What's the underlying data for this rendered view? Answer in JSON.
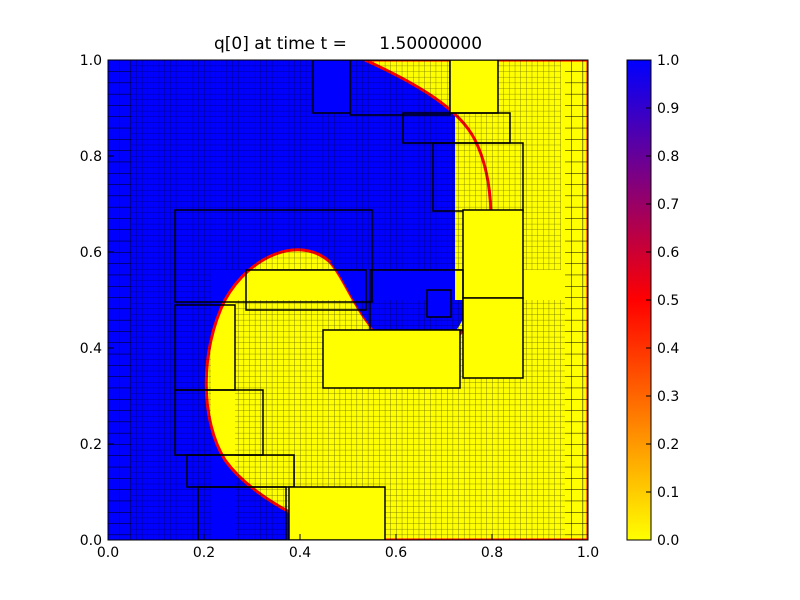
{
  "chart_data": {
    "type": "heatmap",
    "title": "q[0] at time t =      1.50000000",
    "xlabel": "",
    "ylabel": "",
    "xlim": [
      0.0,
      1.0
    ],
    "ylim": [
      0.0,
      1.0
    ],
    "x_ticks": [
      "0.0",
      "0.2",
      "0.4",
      "0.6",
      "0.8",
      "1.0"
    ],
    "y_ticks": [
      "0.0",
      "0.2",
      "0.4",
      "0.6",
      "0.8",
      "1.0"
    ],
    "grid": false,
    "colormap": {
      "name": "yellow-red-blue",
      "range": [
        0.0,
        1.0
      ],
      "stops": [
        {
          "value": 0.0,
          "color": "#ffff00"
        },
        {
          "value": 0.5,
          "color": "#ff0000"
        },
        {
          "value": 1.0,
          "color": "#0000ff"
        }
      ]
    },
    "colorbar": {
      "placement": "right",
      "ticks": [
        "0.0",
        "0.1",
        "0.2",
        "0.3",
        "0.4",
        "0.5",
        "0.6",
        "0.7",
        "0.8",
        "0.9",
        "1.0"
      ]
    },
    "field": {
      "description_values": "q=1 (blue) on the left/outer region, q=0 (yellow) in the rolled-up spiral and right side, with a thin red transition band"
    }
  }
}
